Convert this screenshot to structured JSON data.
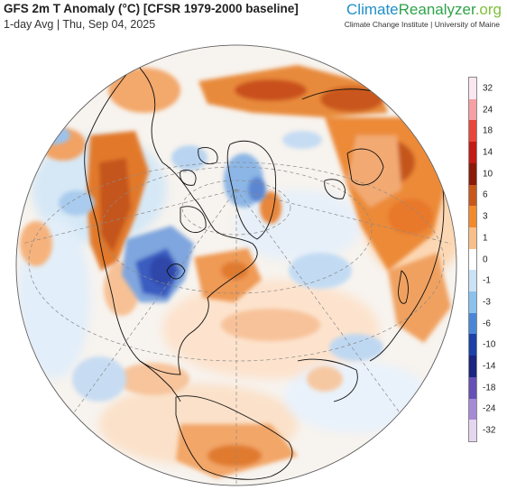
{
  "header": {
    "title": "GFS 2m T Anomaly (°C) [CFSR 1979-2000 baseline]",
    "subtitle": "1-day Avg | Thu, Sep 04, 2025"
  },
  "brand": {
    "part1": "Climate",
    "part2": "Reanalyzer",
    "part3": ".org",
    "affiliation": "Climate Change Institute | University of Maine"
  },
  "map": {
    "projection": "orthographic-northern-hemisphere",
    "regions": [
      {
        "name": "western-north-america",
        "anomaly": "warm"
      },
      {
        "name": "central-canada-great-lakes",
        "anomaly": "cold"
      },
      {
        "name": "greenland",
        "anomaly": "mixed"
      },
      {
        "name": "western-europe",
        "anomaly": "warm"
      },
      {
        "name": "northern-russia",
        "anomaly": "very-warm"
      },
      {
        "name": "east-asia",
        "anomaly": "warm"
      },
      {
        "name": "north-atlantic",
        "anomaly": "slightly-warm"
      },
      {
        "name": "north-pacific",
        "anomaly": "mixed"
      },
      {
        "name": "arctic-ocean",
        "anomaly": "near-normal"
      }
    ]
  },
  "legend": {
    "labels": [
      "32",
      "24",
      "18",
      "14",
      "10",
      "6",
      "3",
      "1",
      "0",
      "-1",
      "-3",
      "-6",
      "-10",
      "-14",
      "-18",
      "-24",
      "-32"
    ],
    "colors": [
      "#fbe7ef",
      "#f6a0a4",
      "#e8463a",
      "#c31b15",
      "#8b1a09",
      "#c9561a",
      "#f28a2c",
      "#f8c088",
      "#ffffff",
      "#c9e2f6",
      "#8ac2ee",
      "#4a86d6",
      "#1c3fa8",
      "#1b2480",
      "#6550b5",
      "#a68ad6",
      "#e5d6ef"
    ]
  }
}
